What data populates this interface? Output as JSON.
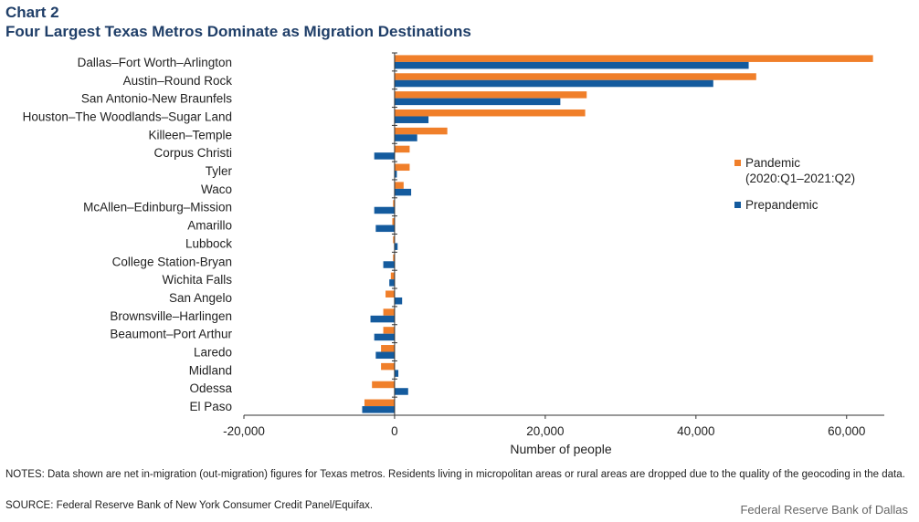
{
  "header": {
    "label": "Chart 2",
    "title": "Four Largest Texas Metros Dominate as Migration Destinations"
  },
  "colors": {
    "pandemic": "#f07f2a",
    "prepandemic": "#145b9e"
  },
  "chart_data": {
    "type": "bar",
    "orientation": "horizontal",
    "categories": [
      "Dallas–Fort Worth–Arlington",
      "Austin–Round Rock",
      "San Antonio-New Braunfels",
      "Houston–The Woodlands–Sugar Land",
      "Killeen–Temple",
      "Corpus Christi",
      "Tyler",
      "Waco",
      "McAllen–Edinburg–Mission",
      "Amarillo",
      "Lubbock",
      "College Station-Bryan",
      "Wichita Falls",
      "San Angelo",
      "Brownsville–Harlingen",
      "Beaumont–Port Arthur",
      "Laredo",
      "Midland",
      "Odessa",
      "El Paso"
    ],
    "series": [
      {
        "name": "Pandemic",
        "name_line2": "(2020:Q1–2021:Q2)",
        "values": [
          63500,
          48000,
          25500,
          25300,
          7000,
          2000,
          2000,
          1200,
          -200,
          -300,
          -200,
          -200,
          -500,
          -1200,
          -1500,
          -1500,
          -1800,
          -1800,
          -3000,
          -4000
        ]
      },
      {
        "name": "Prepandemic",
        "values": [
          47000,
          42300,
          22000,
          4500,
          3000,
          -2700,
          300,
          2200,
          -2700,
          -2500,
          400,
          -1500,
          -700,
          1000,
          -3200,
          -2700,
          -2500,
          500,
          1800,
          -4300
        ]
      }
    ],
    "xlabel": "Number of people",
    "xlim": [
      -20000,
      65000
    ],
    "xticks": [
      -20000,
      0,
      20000,
      40000,
      60000
    ],
    "xtick_labels": [
      "-20,000",
      "0",
      "20,000",
      "40,000",
      "60,000"
    ],
    "legend_position": "right",
    "grid": false
  },
  "footer": {
    "notes": "NOTES: Data shown are net in-migration (out-migration) figures for Texas metros. Residents living in micropolitan areas or rural areas are dropped due to the quality of the geocoding in the data.",
    "source": "SOURCE: Federal Reserve Bank of New York Consumer Credit Panel/Equifax.",
    "credit": "Federal Reserve Bank of Dallas"
  }
}
